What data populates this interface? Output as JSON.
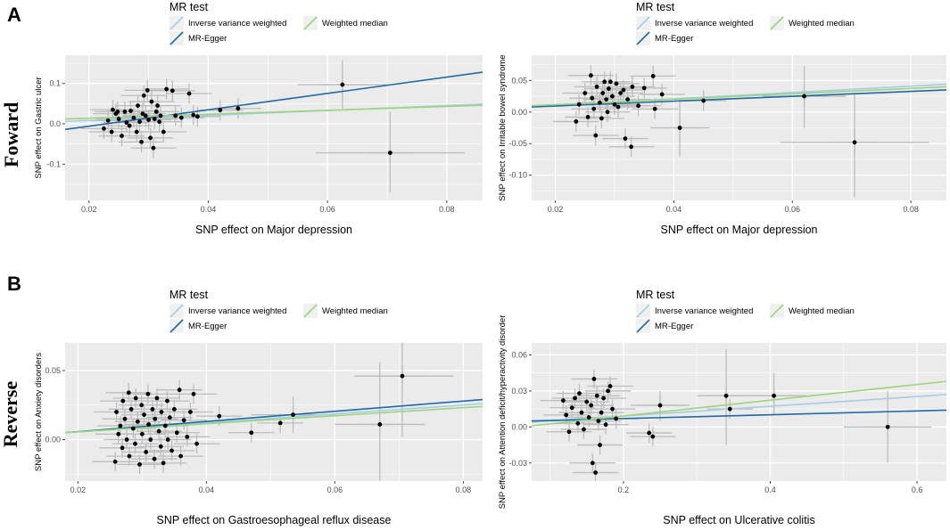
{
  "panels": {
    "a": {
      "letter": "A",
      "side_label": "Foward"
    },
    "b": {
      "letter": "B",
      "side_label": "Reverse"
    }
  },
  "legend": {
    "title": "MR test",
    "items": [
      "Inverse variance weighted",
      "MR-Egger",
      "Weighted median"
    ]
  },
  "colors": {
    "ivw": "#a6cee3",
    "egger": "#1f6aa5",
    "wm": "#9ed37f",
    "panel_bg": "#ebebeb",
    "grid": "#ffffff",
    "errorbar": "#bdbdbd",
    "point": "#000000"
  },
  "chart_data": [
    {
      "type": "scatter",
      "title": "",
      "xlabel": "SNP effect on Major depression",
      "ylabel": "SNP effect on Gastric ulcer",
      "xlim": [
        0.016,
        0.086
      ],
      "ylim": [
        -0.19,
        0.17
      ],
      "xticks": [
        0.02,
        0.04,
        0.06,
        0.08
      ],
      "xtick_labels": [
        "0.02",
        "0.04",
        "0.06",
        "0.08"
      ],
      "yticks": [
        -0.1,
        0.0,
        0.1
      ],
      "ytick_labels": [
        "-0.1",
        "0.0",
        "0.1"
      ],
      "lines": [
        {
          "name": "Inverse variance weighted",
          "key": "ivw",
          "x": [
            0.016,
            0.086
          ],
          "y": [
            0.006,
            0.049
          ]
        },
        {
          "name": "MR-Egger",
          "key": "egger",
          "x": [
            0.016,
            0.086
          ],
          "y": [
            -0.014,
            0.128
          ]
        },
        {
          "name": "Weighted median",
          "key": "wm",
          "x": [
            0.016,
            0.086
          ],
          "y": [
            0.012,
            0.046
          ]
        }
      ],
      "points": [
        {
          "x": 0.0225,
          "y": -0.012
        },
        {
          "x": 0.0232,
          "y": 0.008
        },
        {
          "x": 0.0238,
          "y": -0.02
        },
        {
          "x": 0.024,
          "y": 0.035
        },
        {
          "x": 0.0245,
          "y": 0.025
        },
        {
          "x": 0.0248,
          "y": 0.03
        },
        {
          "x": 0.025,
          "y": 0.012
        },
        {
          "x": 0.0255,
          "y": -0.03
        },
        {
          "x": 0.026,
          "y": 0.03
        },
        {
          "x": 0.0263,
          "y": 0.003
        },
        {
          "x": 0.0268,
          "y": -0.005
        },
        {
          "x": 0.027,
          "y": 0.032
        },
        {
          "x": 0.0275,
          "y": 0.015
        },
        {
          "x": 0.028,
          "y": -0.02
        },
        {
          "x": 0.0282,
          "y": 0.045
        },
        {
          "x": 0.0285,
          "y": 0.005
        },
        {
          "x": 0.0288,
          "y": -0.045
        },
        {
          "x": 0.029,
          "y": 0.025
        },
        {
          "x": 0.0292,
          "y": 0.07
        },
        {
          "x": 0.0295,
          "y": 0.02
        },
        {
          "x": 0.0298,
          "y": 0.083
        },
        {
          "x": 0.03,
          "y": 0.01
        },
        {
          "x": 0.0303,
          "y": -0.035
        },
        {
          "x": 0.0305,
          "y": 0.055
        },
        {
          "x": 0.0308,
          "y": -0.06
        },
        {
          "x": 0.031,
          "y": 0.012
        },
        {
          "x": 0.0313,
          "y": 0.03
        },
        {
          "x": 0.0315,
          "y": 0.045
        },
        {
          "x": 0.0318,
          "y": 0.005
        },
        {
          "x": 0.032,
          "y": 0.02
        },
        {
          "x": 0.0325,
          "y": -0.02
        },
        {
          "x": 0.033,
          "y": 0.086
        },
        {
          "x": 0.034,
          "y": 0.082
        },
        {
          "x": 0.0345,
          "y": 0.02
        },
        {
          "x": 0.0355,
          "y": 0.015
        },
        {
          "x": 0.0368,
          "y": 0.075
        },
        {
          "x": 0.0375,
          "y": 0.022
        },
        {
          "x": 0.0382,
          "y": 0.018
        },
        {
          "x": 0.042,
          "y": 0.034
        },
        {
          "x": 0.045,
          "y": 0.038
        },
        {
          "x": 0.0625,
          "y": 0.097
        },
        {
          "x": 0.0705,
          "y": -0.072
        }
      ],
      "errorbars": [
        {
          "x": 0.0625,
          "y": 0.097,
          "xlo": 0.055,
          "xhi": 0.07,
          "ylo": 0.038,
          "yhi": 0.158
        },
        {
          "x": 0.0705,
          "y": -0.072,
          "xlo": 0.058,
          "xhi": 0.083,
          "ylo": -0.17,
          "yhi": 0.03
        }
      ]
    },
    {
      "type": "scatter",
      "title": "",
      "xlabel": "SNP effect on Major depression",
      "ylabel": "SNP effect on Irritable bowel syndrome",
      "xlim": [
        0.016,
        0.086
      ],
      "ylim": [
        -0.14,
        0.09
      ],
      "xticks": [
        0.02,
        0.04,
        0.06,
        0.08
      ],
      "xtick_labels": [
        "0.02",
        "0.04",
        "0.06",
        "0.08"
      ],
      "yticks": [
        -0.1,
        -0.05,
        0.0,
        0.05
      ],
      "ytick_labels": [
        "-0.10",
        "-0.05",
        "0.00",
        "0.05"
      ],
      "lines": [
        {
          "name": "Inverse variance weighted",
          "key": "ivw",
          "x": [
            0.016,
            0.086
          ],
          "y": [
            0.009,
            0.044
          ]
        },
        {
          "name": "MR-Egger",
          "key": "egger",
          "x": [
            0.016,
            0.086
          ],
          "y": [
            0.008,
            0.035
          ]
        },
        {
          "name": "Weighted median",
          "key": "wm",
          "x": [
            0.016,
            0.086
          ],
          "y": [
            0.01,
            0.04
          ]
        }
      ],
      "points": [
        {
          "x": 0.0235,
          "y": -0.015
        },
        {
          "x": 0.024,
          "y": 0.012
        },
        {
          "x": 0.025,
          "y": 0.03
        },
        {
          "x": 0.0255,
          "y": -0.008
        },
        {
          "x": 0.026,
          "y": 0.058
        },
        {
          "x": 0.0262,
          "y": 0.022
        },
        {
          "x": 0.0265,
          "y": 0.005
        },
        {
          "x": 0.0268,
          "y": -0.037
        },
        {
          "x": 0.027,
          "y": 0.04
        },
        {
          "x": 0.0275,
          "y": 0.015
        },
        {
          "x": 0.0278,
          "y": -0.01
        },
        {
          "x": 0.028,
          "y": 0.03
        },
        {
          "x": 0.0283,
          "y": 0.048
        },
        {
          "x": 0.0286,
          "y": 0.02
        },
        {
          "x": 0.0288,
          "y": 0.0
        },
        {
          "x": 0.029,
          "y": 0.037
        },
        {
          "x": 0.0293,
          "y": 0.048
        },
        {
          "x": 0.0296,
          "y": 0.025
        },
        {
          "x": 0.03,
          "y": 0.012
        },
        {
          "x": 0.0303,
          "y": 0.045
        },
        {
          "x": 0.0306,
          "y": 0.008
        },
        {
          "x": 0.031,
          "y": 0.03
        },
        {
          "x": 0.0315,
          "y": 0.035
        },
        {
          "x": 0.0318,
          "y": -0.042
        },
        {
          "x": 0.0322,
          "y": 0.02
        },
        {
          "x": 0.0328,
          "y": -0.055
        },
        {
          "x": 0.033,
          "y": 0.04
        },
        {
          "x": 0.034,
          "y": 0.01
        },
        {
          "x": 0.035,
          "y": 0.038
        },
        {
          "x": 0.0365,
          "y": 0.057
        },
        {
          "x": 0.0368,
          "y": 0.005
        },
        {
          "x": 0.038,
          "y": 0.028
        },
        {
          "x": 0.041,
          "y": -0.025
        },
        {
          "x": 0.045,
          "y": 0.018
        },
        {
          "x": 0.062,
          "y": 0.025
        },
        {
          "x": 0.0705,
          "y": -0.048
        }
      ],
      "errorbars": [
        {
          "x": 0.062,
          "y": 0.025,
          "xlo": 0.055,
          "xhi": 0.069,
          "ylo": -0.025,
          "yhi": 0.073
        },
        {
          "x": 0.0705,
          "y": -0.048,
          "xlo": 0.058,
          "xhi": 0.083,
          "ylo": -0.135,
          "yhi": 0.03
        },
        {
          "x": 0.041,
          "y": -0.025,
          "xlo": 0.036,
          "xhi": 0.046,
          "ylo": -0.07,
          "yhi": 0.02
        }
      ]
    },
    {
      "type": "scatter",
      "title": "",
      "xlabel": "SNP effect on Gastroesophageal reflux disease",
      "ylabel": "SNP effect on Anxiety disorders",
      "xlim": [
        0.018,
        0.083
      ],
      "ylim": [
        -0.03,
        0.07
      ],
      "xticks": [
        0.02,
        0.04,
        0.06,
        0.08
      ],
      "xtick_labels": [
        "0.02",
        "0.04",
        "0.06",
        "0.08"
      ],
      "yticks": [
        0.0,
        0.05
      ],
      "ytick_labels": [
        "0.00",
        "0.05"
      ],
      "lines": [
        {
          "name": "Inverse variance weighted",
          "key": "ivw",
          "x": [
            0.018,
            0.083
          ],
          "y": [
            0.005,
            0.026
          ]
        },
        {
          "name": "MR-Egger",
          "key": "egger",
          "x": [
            0.018,
            0.083
          ],
          "y": [
            0.005,
            0.029
          ]
        },
        {
          "name": "Weighted median",
          "key": "wm",
          "x": [
            0.018,
            0.083
          ],
          "y": [
            0.005,
            0.024
          ]
        }
      ],
      "points": [
        {
          "x": 0.0258,
          "y": -0.016
        },
        {
          "x": 0.026,
          "y": 0.02
        },
        {
          "x": 0.0263,
          "y": 0.004
        },
        {
          "x": 0.0266,
          "y": 0.01
        },
        {
          "x": 0.0269,
          "y": -0.006
        },
        {
          "x": 0.027,
          "y": 0.028
        },
        {
          "x": 0.0273,
          "y": 0.015
        },
        {
          "x": 0.0276,
          "y": 0.0
        },
        {
          "x": 0.0279,
          "y": 0.034
        },
        {
          "x": 0.028,
          "y": -0.012
        },
        {
          "x": 0.0283,
          "y": 0.022
        },
        {
          "x": 0.0286,
          "y": 0.008
        },
        {
          "x": 0.0289,
          "y": -0.003
        },
        {
          "x": 0.029,
          "y": 0.03
        },
        {
          "x": 0.0293,
          "y": 0.013
        },
        {
          "x": 0.0296,
          "y": -0.018
        },
        {
          "x": 0.0299,
          "y": 0.025
        },
        {
          "x": 0.03,
          "y": 0.004
        },
        {
          "x": 0.0303,
          "y": 0.018
        },
        {
          "x": 0.0306,
          "y": -0.009
        },
        {
          "x": 0.0309,
          "y": 0.033
        },
        {
          "x": 0.031,
          "y": 0.011
        },
        {
          "x": 0.0313,
          "y": 0.0
        },
        {
          "x": 0.0316,
          "y": 0.022
        },
        {
          "x": 0.0319,
          "y": -0.014
        },
        {
          "x": 0.032,
          "y": 0.015
        },
        {
          "x": 0.0323,
          "y": 0.03
        },
        {
          "x": 0.0326,
          "y": 0.006
        },
        {
          "x": 0.0329,
          "y": -0.005
        },
        {
          "x": 0.033,
          "y": 0.02
        },
        {
          "x": 0.0333,
          "y": -0.017
        },
        {
          "x": 0.0336,
          "y": 0.01
        },
        {
          "x": 0.0339,
          "y": 0.028
        },
        {
          "x": 0.034,
          "y": 0.0
        },
        {
          "x": 0.0343,
          "y": 0.016
        },
        {
          "x": 0.0346,
          "y": -0.008
        },
        {
          "x": 0.035,
          "y": 0.022
        },
        {
          "x": 0.0354,
          "y": 0.005
        },
        {
          "x": 0.0358,
          "y": 0.036
        },
        {
          "x": 0.036,
          "y": -0.012
        },
        {
          "x": 0.0365,
          "y": 0.014
        },
        {
          "x": 0.037,
          "y": 0.002
        },
        {
          "x": 0.0375,
          "y": 0.02
        },
        {
          "x": 0.038,
          "y": 0.033
        },
        {
          "x": 0.0385,
          "y": -0.003
        },
        {
          "x": 0.042,
          "y": 0.017
        },
        {
          "x": 0.047,
          "y": 0.005
        },
        {
          "x": 0.0515,
          "y": 0.012
        },
        {
          "x": 0.0535,
          "y": 0.018
        },
        {
          "x": 0.067,
          "y": 0.011
        },
        {
          "x": 0.0705,
          "y": 0.046
        }
      ],
      "errorbars": [
        {
          "x": 0.0705,
          "y": 0.046,
          "xlo": 0.063,
          "xhi": 0.0785,
          "ylo": 0.002,
          "yhi": 0.09
        },
        {
          "x": 0.067,
          "y": 0.011,
          "xlo": 0.06,
          "xhi": 0.074,
          "ylo": -0.035,
          "yhi": 0.056
        },
        {
          "x": 0.0535,
          "y": 0.018,
          "xlo": 0.047,
          "xhi": 0.06,
          "ylo": 0.005,
          "yhi": 0.031
        }
      ]
    },
    {
      "type": "scatter",
      "title": "",
      "xlabel": "SNP effect on Ulcerative colitis",
      "ylabel": "SNP effect on Attention deficit/hyperactivity disorder",
      "xlim": [
        0.075,
        0.64
      ],
      "ylim": [
        -0.045,
        0.07
      ],
      "xticks": [
        0.2,
        0.4,
        0.6
      ],
      "xtick_labels": [
        "0.2",
        "0.4",
        "0.6"
      ],
      "yticks": [
        -0.03,
        0.0,
        0.03,
        0.06
      ],
      "ytick_labels": [
        "-0.03",
        "0.00",
        "0.03",
        "0.06"
      ],
      "lines": [
        {
          "name": "Inverse variance weighted",
          "key": "ivw",
          "x": [
            0.075,
            0.64
          ],
          "y": [
            0.004,
            0.027
          ]
        },
        {
          "name": "MR-Egger",
          "key": "egger",
          "x": [
            0.075,
            0.64
          ],
          "y": [
            0.005,
            0.014
          ]
        },
        {
          "name": "Weighted median",
          "key": "wm",
          "x": [
            0.075,
            0.64
          ],
          "y": [
            0.001,
            0.038
          ]
        }
      ],
      "points": [
        {
          "x": 0.118,
          "y": 0.022
        },
        {
          "x": 0.122,
          "y": 0.01
        },
        {
          "x": 0.126,
          "y": -0.004
        },
        {
          "x": 0.13,
          "y": 0.016
        },
        {
          "x": 0.134,
          "y": 0.024
        },
        {
          "x": 0.138,
          "y": 0.003
        },
        {
          "x": 0.14,
          "y": 0.028
        },
        {
          "x": 0.143,
          "y": 0.012
        },
        {
          "x": 0.146,
          "y": -0.002
        },
        {
          "x": 0.15,
          "y": 0.021
        },
        {
          "x": 0.153,
          "y": 0.008
        },
        {
          "x": 0.156,
          "y": 0.018
        },
        {
          "x": 0.158,
          "y": -0.03
        },
        {
          "x": 0.16,
          "y": 0.04
        },
        {
          "x": 0.162,
          "y": -0.038
        },
        {
          "x": 0.164,
          "y": 0.026
        },
        {
          "x": 0.166,
          "y": 0.005
        },
        {
          "x": 0.168,
          "y": -0.015
        },
        {
          "x": 0.17,
          "y": 0.012
        },
        {
          "x": 0.173,
          "y": 0.024
        },
        {
          "x": 0.176,
          "y": 0.002
        },
        {
          "x": 0.179,
          "y": 0.03
        },
        {
          "x": 0.182,
          "y": 0.034
        },
        {
          "x": 0.185,
          "y": 0.015
        },
        {
          "x": 0.19,
          "y": 0.007
        },
        {
          "x": 0.235,
          "y": -0.005
        },
        {
          "x": 0.24,
          "y": -0.008
        },
        {
          "x": 0.25,
          "y": 0.018
        },
        {
          "x": 0.34,
          "y": 0.026
        },
        {
          "x": 0.345,
          "y": 0.015
        },
        {
          "x": 0.405,
          "y": 0.026
        },
        {
          "x": 0.56,
          "y": 0.0
        }
      ],
      "errorbars": [
        {
          "x": 0.34,
          "y": 0.026,
          "xlo": 0.3,
          "xhi": 0.38,
          "ylo": -0.015,
          "yhi": 0.065
        },
        {
          "x": 0.405,
          "y": 0.026,
          "xlo": 0.36,
          "xhi": 0.45,
          "ylo": 0.01,
          "yhi": 0.045
        },
        {
          "x": 0.56,
          "y": 0.0,
          "xlo": 0.5,
          "xhi": 0.62,
          "ylo": -0.03,
          "yhi": 0.03
        },
        {
          "x": 0.25,
          "y": 0.018,
          "xlo": 0.21,
          "xhi": 0.29,
          "ylo": 0.005,
          "yhi": 0.03
        }
      ]
    }
  ]
}
